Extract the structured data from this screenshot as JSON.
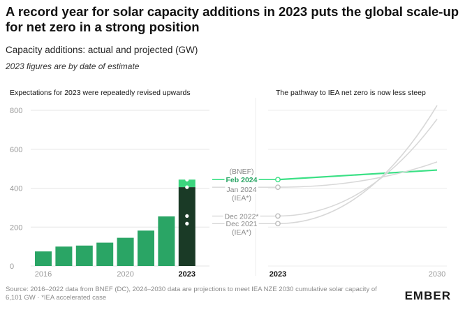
{
  "header": {
    "title": "A record year for solar capacity additions in 2023 puts the global scale-up for net zero in a strong position",
    "subtitle": "Capacity additions: actual and projected (GW)",
    "note": "2023 figures are by date of estimate"
  },
  "footer": {
    "source": "Source: 2016–2022 data from BNEF (DC), 2024–2030 data are projections to meet IEA NZE 2030 cumulative solar capacity of 6,101 GW · *IEA accelerated case",
    "logo": "EMBER"
  },
  "colors": {
    "bar_green": "#2aa565",
    "bar_light": "#3cd57e",
    "bar_dark": "#1a3a26",
    "line_green": "#3be085",
    "grey_line": "#d8d8d8",
    "axis_text": "#9a9a9a",
    "label_text": "#8a8a8a"
  },
  "chart_data": [
    {
      "type": "bar",
      "title": "Expectations for 2023 were repeatedly revised upwards",
      "categories": [
        "2016",
        "2017",
        "2018",
        "2019",
        "2020",
        "2021",
        "2022",
        "2023"
      ],
      "x_tick_labels": [
        "2016",
        "2020",
        "2023"
      ],
      "values": [
        75,
        100,
        105,
        120,
        145,
        182,
        255,
        444
      ],
      "ylim": [
        0,
        800
      ],
      "y_ticks": [
        0,
        200,
        400,
        600,
        800
      ],
      "grid": true,
      "estimates_2023": [
        {
          "label": "Dec 2021",
          "sublabel": "(IEA*)",
          "value": 218
        },
        {
          "label": "Dec 2022*",
          "sublabel": "",
          "value": 257
        },
        {
          "label": "Jan 2024",
          "sublabel": "(IEA*)",
          "value": 405
        },
        {
          "label": "Feb 2024",
          "sublabel": "(BNEF)",
          "value": 444
        }
      ]
    },
    {
      "type": "line",
      "title": "The pathway to IEA net zero is now less steep",
      "x": [
        2023,
        2030
      ],
      "x_tick_labels": [
        "2023",
        "2030"
      ],
      "ylim": [
        0,
        800
      ],
      "series": [
        {
          "name": "Feb 2024",
          "values": [
            444,
            493
          ],
          "highlight": true
        },
        {
          "name": "Jan 2024",
          "values": [
            405,
            535
          ]
        },
        {
          "name": "Dec 2022*",
          "values": [
            257,
            755
          ]
        },
        {
          "name": "Dec 2021",
          "values": [
            218,
            825
          ]
        }
      ]
    }
  ]
}
